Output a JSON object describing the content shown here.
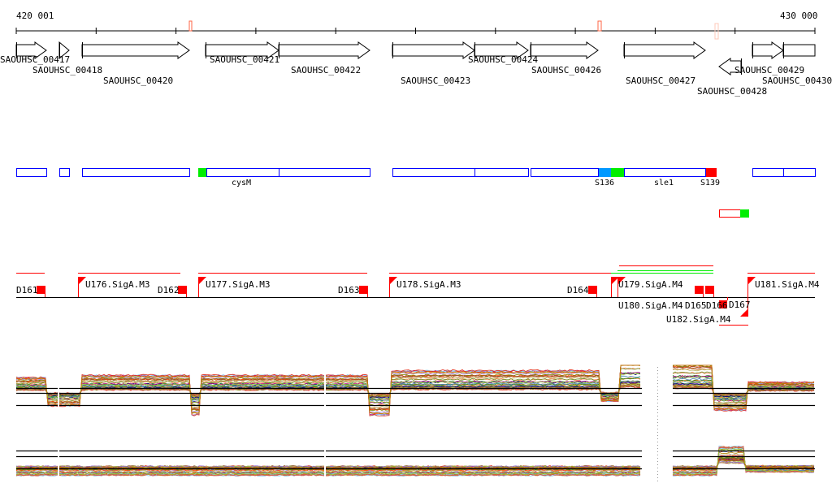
{
  "ruler": {
    "start_label": "420 001",
    "end_label": "430 000"
  },
  "genes": [
    {
      "id": "SAOUHSC_00417",
      "strand": "+"
    },
    {
      "id": "SAOUHSC_00418",
      "strand": "+"
    },
    {
      "id": "SAOUHSC_00420",
      "strand": "+"
    },
    {
      "id": "SAOUHSC_00421",
      "strand": "+"
    },
    {
      "id": "SAOUHSC_00422",
      "strand": "+"
    },
    {
      "id": "SAOUHSC_00423",
      "strand": "+"
    },
    {
      "id": "SAOUHSC_00424",
      "strand": "+"
    },
    {
      "id": "SAOUHSC_00426",
      "strand": "+"
    },
    {
      "id": "SAOUHSC_00427",
      "strand": "+"
    },
    {
      "id": "SAOUHSC_00428",
      "strand": "-"
    },
    {
      "id": "SAOUHSC_00429",
      "strand": "+"
    },
    {
      "id": "SAOUHSC_00430",
      "strand": "+"
    }
  ],
  "features": {
    "labels": [
      "cysM",
      "S136",
      "sle1",
      "S139"
    ]
  },
  "segments": {
    "down": [
      "D161",
      "D162",
      "D163",
      "D164",
      "D165",
      "D166",
      "D167"
    ],
    "up": [
      "U176.SigA.M3",
      "U177.SigA.M3",
      "U178.SigA.M3",
      "U179.SigA.M4",
      "U180.SigA.M4",
      "U181.SigA.M4",
      "U182.SigA.M4"
    ]
  },
  "colors": {
    "feature_outline": "#0000ff",
    "segment": "#ff0000",
    "green": "#00ee00",
    "blue": "#0099ff",
    "marker": "#ff6644"
  }
}
